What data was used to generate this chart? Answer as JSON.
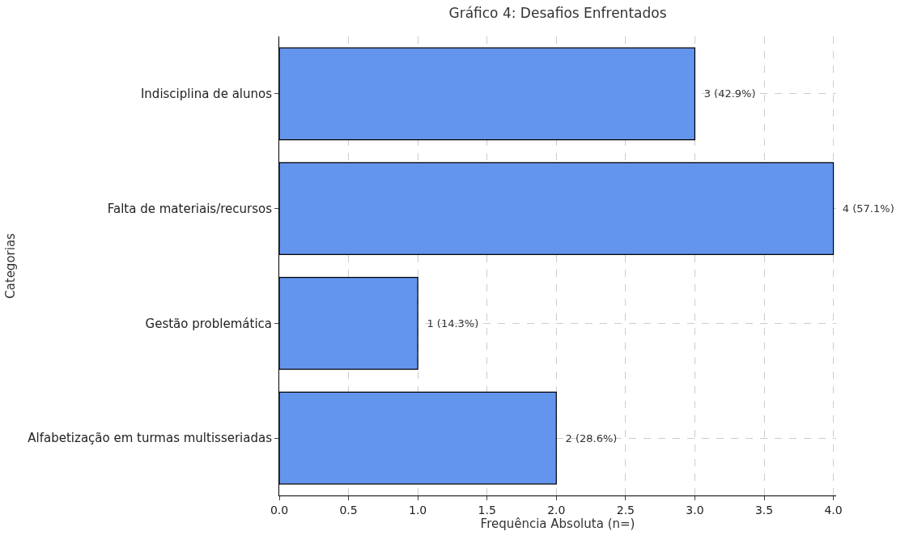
{
  "chart_data": {
    "type": "bar",
    "orientation": "horizontal",
    "title": "Gráfico 4: Desafios Enfrentados",
    "xlabel": "Frequência Absoluta (n=)",
    "ylabel": "Categorias",
    "categories": [
      "Indisciplina de alunos",
      "Falta de materiais/recursos",
      "Gestão problemática",
      "Alfabetização em turmas multisseriadas"
    ],
    "values": [
      3,
      4,
      1,
      2
    ],
    "color": "#6495ed",
    "value_labels": [
      "3 (42.9%)",
      "4 (57.1%)",
      "1 (14.3%)",
      "2 (28.6%)"
    ],
    "xlim": [
      0,
      4.02
    ],
    "xticks": [
      {
        "value": 0,
        "label": "0.0"
      },
      0.5,
      {
        "value": 1,
        "label": "1.0"
      },
      1.5,
      {
        "value": 2,
        "label": "2.0"
      },
      2.5,
      {
        "value": 3,
        "label": "3.0"
      },
      3.5,
      {
        "value": 4,
        "label": "4.0"
      }
    ],
    "grid": true,
    "legend": false
  }
}
